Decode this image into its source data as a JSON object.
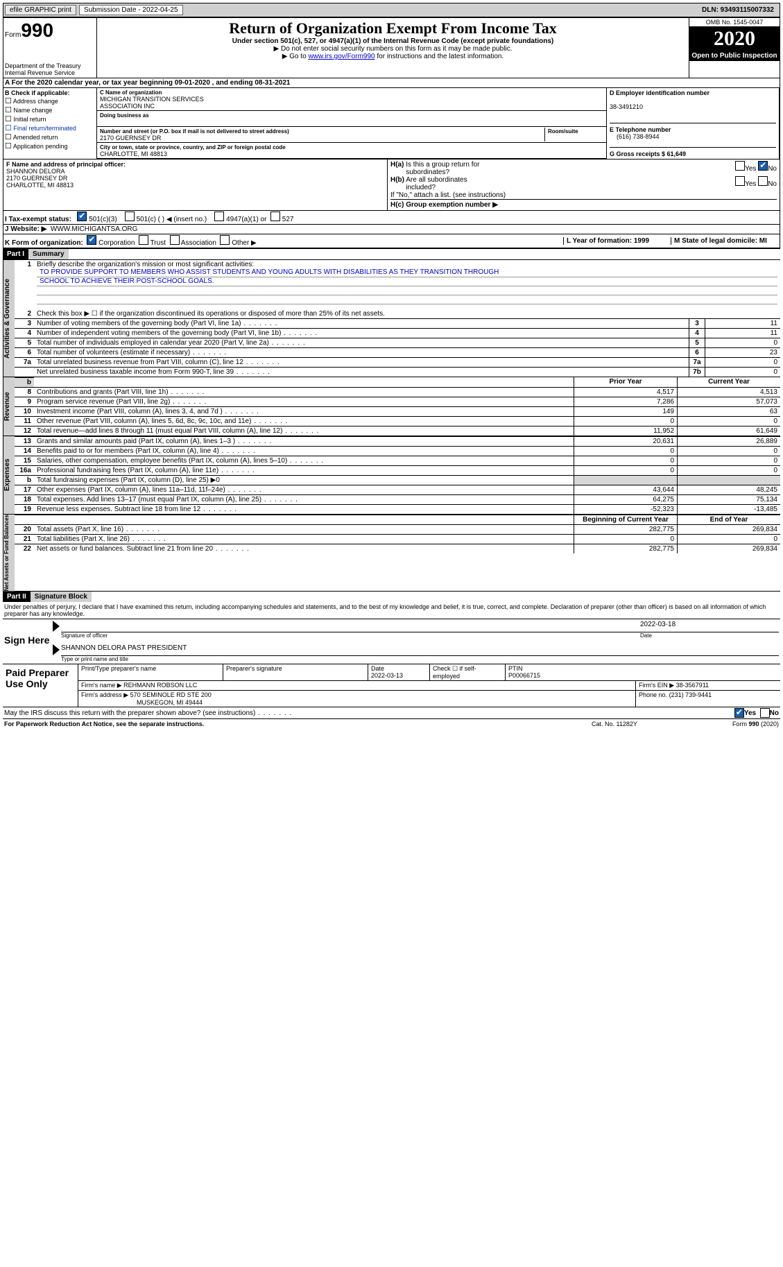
{
  "topbar": {
    "efile": "efile GRAPHIC print",
    "submission": "Submission Date - 2022-04-25",
    "dln": "DLN: 93493115007332"
  },
  "header": {
    "form_word": "Form",
    "form_num": "990",
    "dept1": "Department of the Treasury",
    "dept2": "Internal Revenue Service",
    "title": "Return of Organization Exempt From Income Tax",
    "sub1": "Under section 501(c), 527, or 4947(a)(1) of the Internal Revenue Code (except private foundations)",
    "sub2": "▶ Do not enter social security numbers on this form as it may be made public.",
    "sub3_pre": "▶ Go to ",
    "sub3_link": "www.irs.gov/Form990",
    "sub3_post": " for instructions and the latest information.",
    "omb": "OMB No. 1545-0047",
    "year": "2020",
    "open": "Open to Public Inspection"
  },
  "line_a": "For the 2020 calendar year, or tax year beginning 09-01-2020   , and ending 08-31-2021",
  "block_b": {
    "title": "B Check if applicable:",
    "items": [
      "Address change",
      "Name change",
      "Initial return",
      "Final return/terminated",
      "Amended return",
      "Application pending"
    ]
  },
  "block_c": {
    "name_label": "C Name of organization",
    "name1": "MICHIGAN TRANSITION SERVICES",
    "name2": "ASSOCIATION INC",
    "dba_label": "Doing business as",
    "addr_label": "Number and street (or P.O. box if mail is not delivered to street address)",
    "room_label": "Room/suite",
    "addr": "2170 GUERNSEY DR",
    "city_label": "City or town, state or province, country, and ZIP or foreign postal code",
    "city": "CHARLOTTE, MI  48813"
  },
  "block_d": {
    "label": "D Employer identification number",
    "value": "38-3491210",
    "e_label": "E Telephone number",
    "e_value": "(616) 738-8944",
    "g_label": "G Gross receipts $ 61,649"
  },
  "block_f": {
    "label": "F  Name and address of principal officer:",
    "line1": "SHANNON DELORA",
    "line2": "2170 GUERNSEY DR",
    "line3": "CHARLOTTE, MI  48813"
  },
  "block_h": {
    "a_label": "H(a)  Is this a group return for subordinates?",
    "a_yes": "Yes",
    "a_no": "No",
    "b_label": "H(b)  Are all subordinates included?",
    "b_yes": "Yes",
    "b_no": "No",
    "b_note": "If \"No,\" attach a list. (see instructions)",
    "c_label": "H(c)  Group exemption number ▶"
  },
  "line_i": {
    "label": "I   Tax-exempt status:",
    "opt1": "501(c)(3)",
    "opt2": "501(c) (  ) ◀ (insert no.)",
    "opt3": "4947(a)(1) or",
    "opt4": "527"
  },
  "line_j": {
    "label": "J   Website: ▶",
    "value": "WWW.MICHIGANTSA.ORG"
  },
  "line_k": {
    "label": "K Form of organization:",
    "opts": [
      "Corporation",
      "Trust",
      "Association",
      "Other ▶"
    ]
  },
  "line_l": {
    "label": "L Year of formation: 1999"
  },
  "line_m": {
    "label": "M State of legal domicile: MI"
  },
  "part1": {
    "tag": "Part I",
    "title": "Summary",
    "q1": "Briefly describe the organization's mission or most significant activities:",
    "mission1": "TO PROVIDE SUPPORT TO MEMBERS WHO ASSIST STUDENTS AND YOUNG ADULTS WITH DISABILITIES AS THEY TRANSITION THROUGH",
    "mission2": "SCHOOL TO ACHIEVE THEIR POST-SCHOOL GOALS.",
    "q2": "Check this box ▶ ☐  if the organization discontinued its operations or disposed of more than 25% of its net assets.",
    "side1": "Activities & Governance",
    "side2": "Revenue",
    "side3": "Expenses",
    "side4": "Net Assets or Fund Balances",
    "lines_gov": [
      {
        "n": "3",
        "t": "Number of voting members of the governing body (Part VI, line 1a)",
        "box": "3",
        "v": "11"
      },
      {
        "n": "4",
        "t": "Number of independent voting members of the governing body (Part VI, line 1b)",
        "box": "4",
        "v": "11"
      },
      {
        "n": "5",
        "t": "Total number of individuals employed in calendar year 2020 (Part V, line 2a)",
        "box": "5",
        "v": "0"
      },
      {
        "n": "6",
        "t": "Total number of volunteers (estimate if necessary)",
        "box": "6",
        "v": "23"
      },
      {
        "n": "7a",
        "t": "Total unrelated business revenue from Part VIII, column (C), line 12",
        "box": "7a",
        "v": "0"
      },
      {
        "n": "",
        "t": "Net unrelated business taxable income from Form 990-T, line 39",
        "box": "7b",
        "v": "0"
      }
    ],
    "col_prior": "Prior Year",
    "col_current": "Current Year",
    "col_begin": "Beginning of Current Year",
    "col_end": "End of Year",
    "lines_rev": [
      {
        "n": "8",
        "t": "Contributions and grants (Part VIII, line 1h)",
        "p": "4,517",
        "c": "4,513"
      },
      {
        "n": "9",
        "t": "Program service revenue (Part VIII, line 2g)",
        "p": "7,286",
        "c": "57,073"
      },
      {
        "n": "10",
        "t": "Investment income (Part VIII, column (A), lines 3, 4, and 7d )",
        "p": "149",
        "c": "63"
      },
      {
        "n": "11",
        "t": "Other revenue (Part VIII, column (A), lines 5, 6d, 8c, 9c, 10c, and 11e)",
        "p": "0",
        "c": "0"
      },
      {
        "n": "12",
        "t": "Total revenue—add lines 8 through 11 (must equal Part VIII, column (A), line 12)",
        "p": "11,952",
        "c": "61,649"
      }
    ],
    "lines_exp": [
      {
        "n": "13",
        "t": "Grants and similar amounts paid (Part IX, column (A), lines 1–3 )",
        "p": "20,631",
        "c": "26,889"
      },
      {
        "n": "14",
        "t": "Benefits paid to or for members (Part IX, column (A), line 4)",
        "p": "0",
        "c": "0"
      },
      {
        "n": "15",
        "t": "Salaries, other compensation, employee benefits (Part IX, column (A), lines 5–10)",
        "p": "0",
        "c": "0"
      },
      {
        "n": "16a",
        "t": "Professional fundraising fees (Part IX, column (A), line 11e)",
        "p": "0",
        "c": "0"
      },
      {
        "n": "b",
        "t": "Total fundraising expenses (Part IX, column (D), line 25) ▶0",
        "p": "",
        "c": "",
        "shade": true
      },
      {
        "n": "17",
        "t": "Other expenses (Part IX, column (A), lines 11a–11d, 11f–24e)",
        "p": "43,644",
        "c": "48,245"
      },
      {
        "n": "18",
        "t": "Total expenses. Add lines 13–17 (must equal Part IX, column (A), line 25)",
        "p": "64,275",
        "c": "75,134"
      },
      {
        "n": "19",
        "t": "Revenue less expenses. Subtract line 18 from line 12",
        "p": "-52,323",
        "c": "-13,485"
      }
    ],
    "lines_net": [
      {
        "n": "20",
        "t": "Total assets (Part X, line 16)",
        "p": "282,775",
        "c": "269,834"
      },
      {
        "n": "21",
        "t": "Total liabilities (Part X, line 26)",
        "p": "0",
        "c": "0"
      },
      {
        "n": "22",
        "t": "Net assets or fund balances. Subtract line 21 from line 20",
        "p": "282,775",
        "c": "269,834"
      }
    ]
  },
  "part2": {
    "tag": "Part II",
    "title": "Signature Block",
    "decl": "Under penalties of perjury, I declare that I have examined this return, including accompanying schedules and statements, and to the best of my knowledge and belief, it is true, correct, and complete. Declaration of preparer (other than officer) is based on all information of which preparer has any knowledge.",
    "sign_here": "Sign Here",
    "sig_label": "Signature of officer",
    "date_label": "Date",
    "sig_date": "2022-03-18",
    "name_title": "SHANNON DELORA  PAST PRESIDENT",
    "name_label": "Type or print name and title"
  },
  "paid": {
    "title": "Paid Preparer Use Only",
    "headers": [
      "Print/Type preparer's name",
      "Preparer's signature",
      "Date",
      "",
      "PTIN"
    ],
    "date": "2022-03-13",
    "check_label": "Check ☐ if self-employed",
    "ptin": "P00066715",
    "firm_label": "Firm's name   ▶",
    "firm": "REHMANN ROBSON LLC",
    "ein_label": "Firm's EIN ▶",
    "ein": "38-3567911",
    "addr_label": "Firm's address ▶",
    "addr1": "570 SEMINOLE RD STE 200",
    "addr2": "MUSKEGON, MI  49444",
    "phone_label": "Phone no.",
    "phone": "(231) 739-9441"
  },
  "may_discuss": {
    "text": "May the IRS discuss this return with the preparer shown above? (see instructions)",
    "yes": "Yes",
    "no": "No"
  },
  "footer": {
    "left": "For Paperwork Reduction Act Notice, see the separate instructions.",
    "mid": "Cat. No. 11282Y",
    "right": "Form 990 (2020)"
  }
}
